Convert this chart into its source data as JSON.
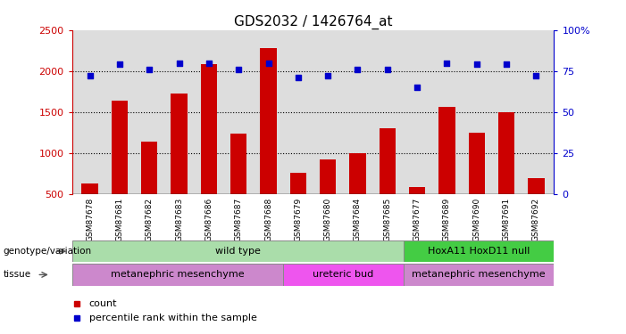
{
  "title": "GDS2032 / 1426764_at",
  "samples": [
    "GSM87678",
    "GSM87681",
    "GSM87682",
    "GSM87683",
    "GSM87686",
    "GSM87687",
    "GSM87688",
    "GSM87679",
    "GSM87680",
    "GSM87684",
    "GSM87685",
    "GSM87677",
    "GSM87689",
    "GSM87690",
    "GSM87691",
    "GSM87692"
  ],
  "counts": [
    630,
    1640,
    1140,
    1720,
    2080,
    1240,
    2280,
    760,
    920,
    1000,
    1300,
    580,
    1560,
    1250,
    1500,
    690
  ],
  "percentiles": [
    72,
    79,
    76,
    80,
    80,
    76,
    80,
    71,
    72,
    76,
    76,
    65,
    80,
    79,
    79,
    72
  ],
  "bar_color": "#cc0000",
  "dot_color": "#0000cc",
  "ylim_left": [
    500,
    2500
  ],
  "ylim_right": [
    0,
    100
  ],
  "yticks_left": [
    500,
    1000,
    1500,
    2000,
    2500
  ],
  "yticks_right": [
    0,
    25,
    50,
    75,
    100
  ],
  "ytick_labels_right": [
    "0",
    "25",
    "50",
    "75",
    "100%"
  ],
  "grid_values": [
    1000,
    1500,
    2000
  ],
  "genotype_regions": [
    {
      "label": "wild type",
      "start": 0,
      "end": 11,
      "color": "#aaddaa"
    },
    {
      "label": "HoxA11 HoxD11 null",
      "start": 11,
      "end": 16,
      "color": "#44cc44"
    }
  ],
  "tissue_regions": [
    {
      "label": "metanephric mesenchyme",
      "start": 0,
      "end": 7,
      "color": "#cc88cc"
    },
    {
      "label": "ureteric bud",
      "start": 7,
      "end": 11,
      "color": "#ee55ee"
    },
    {
      "label": "metanephric mesenchyme",
      "start": 11,
      "end": 16,
      "color": "#cc88cc"
    }
  ],
  "legend_items": [
    {
      "label": "count",
      "color": "#cc0000"
    },
    {
      "label": "percentile rank within the sample",
      "color": "#0000cc"
    }
  ],
  "left_label_color": "#cc0000",
  "right_label_color": "#0000cc",
  "plot_bg": "#dddddd",
  "xtick_bg": "#cccccc"
}
